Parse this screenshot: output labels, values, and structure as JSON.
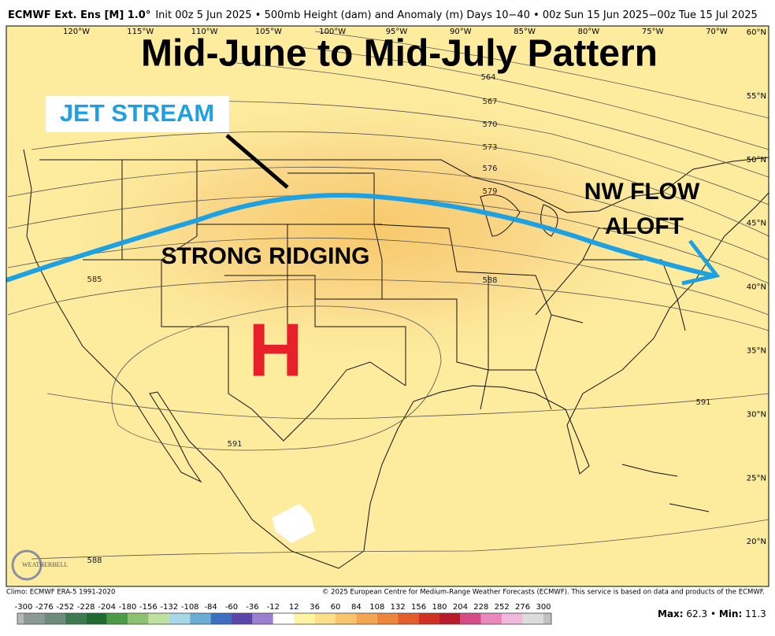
{
  "header": {
    "model": "ECMWF Ext. Ens [M] 1.0°",
    "description": "Init 00z 5 Jun 2025 • 500mb Height (dam) and Anomaly (m)  Days 10−40 • 00z Sun 15 Jun 2025−00z Tue 15 Jul 2025"
  },
  "map": {
    "title": "Mid-June to Mid-July Pattern",
    "annotations": {
      "jet": "JET STREAM",
      "ridging": "STRONG RIDGING",
      "high": "H",
      "flow_line1": "NW FLOW",
      "flow_line2": "ALOFT"
    },
    "longitude_labels": [
      "120°W",
      "115°W",
      "110°W",
      "105°W",
      "100°W",
      "95°W",
      "90°W",
      "85°W",
      "80°W",
      "75°W",
      "70°W"
    ],
    "latitude_labels": [
      "60°N",
      "55°N",
      "50°N",
      "45°N",
      "40°N",
      "35°N",
      "30°N",
      "25°N",
      "20°N"
    ],
    "contour_labels": [
      "564",
      "567",
      "570",
      "573",
      "576",
      "579",
      "588",
      "585",
      "591",
      "591",
      "588"
    ],
    "logo": "WEATHERBELL"
  },
  "footer": {
    "climo": "Climo: ECMWF ERA-5 1991-2020",
    "copyright": "© 2025 European Centre for Medium-Range Weather Forecasts (ECMWF). This service is based on data and products of the ECMWF."
  },
  "colorbar": {
    "ticks": [
      -300,
      -276,
      -252,
      -228,
      -204,
      -180,
      -156,
      -132,
      -108,
      -84,
      -60,
      -36,
      -12,
      12,
      36,
      60,
      84,
      108,
      132,
      156,
      180,
      204,
      228,
      252,
      276,
      300
    ],
    "colors": [
      "#b8b8b8",
      "#8c9a95",
      "#6e8a7a",
      "#3d7a4f",
      "#1f6b30",
      "#4b9a45",
      "#8cc270",
      "#bfe0a0",
      "#a8d8e6",
      "#6aaed6",
      "#3b6fc0",
      "#5a46a8",
      "#9c7fd0",
      "#ffffff",
      "#fff3a6",
      "#fde08a",
      "#f9c56c",
      "#f4a650",
      "#ee853c",
      "#e35e2c",
      "#cf3221",
      "#b81c2a",
      "#d64c86",
      "#e888bc",
      "#f0b8da",
      "#dcdcdc",
      "#c0c0c0"
    ]
  },
  "stats": {
    "max_label": "Max:",
    "max": 62.3,
    "separator": "•",
    "min_label": "Min:",
    "min": 11.3
  }
}
